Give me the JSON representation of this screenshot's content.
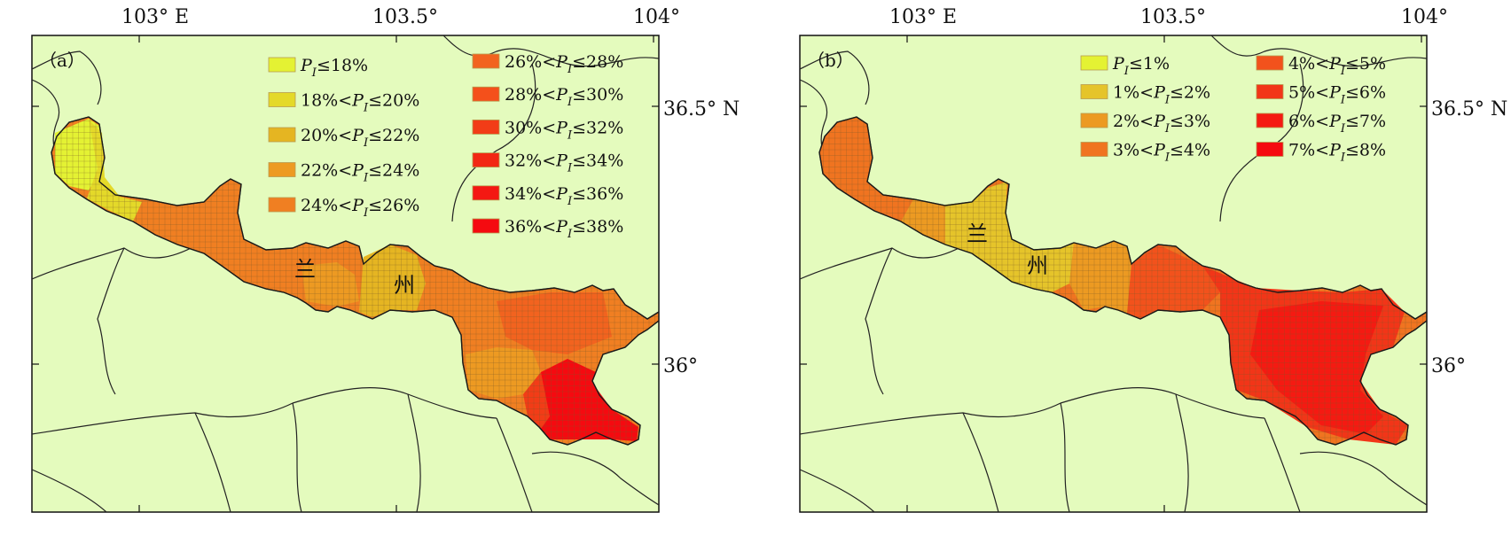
{
  "figure": {
    "panels": [
      {
        "id": "a",
        "label": "（a）",
        "x_ticks": [
          "103° E",
          "103.5°",
          "104°"
        ],
        "y_ticks": [
          "36.5° N",
          "36°"
        ],
        "city_chars": [
          "兰",
          "州"
        ],
        "legend": [
          {
            "pre": "",
            "post": "≤18%",
            "color": "#e4f233"
          },
          {
            "pre": "18%<",
            "post": "≤20%",
            "color": "#e4d929"
          },
          {
            "pre": "20%<",
            "post": "≤22%",
            "color": "#e5b522"
          },
          {
            "pre": "22%<",
            "post": "≤24%",
            "color": "#ed9a22"
          },
          {
            "pre": "24%<",
            "post": "≤26%",
            "color": "#f07f22"
          },
          {
            "pre": "26%<",
            "post": "≤28%",
            "color": "#f2631f"
          },
          {
            "pre": "28%<",
            "post": "≤30%",
            "color": "#f4501b"
          },
          {
            "pre": "30%<",
            "post": "≤32%",
            "color": "#f23c17"
          },
          {
            "pre": "32%<",
            "post": "≤34%",
            "color": "#f22814"
          },
          {
            "pre": "34%<",
            "post": "≤36%",
            "color": "#f41812"
          },
          {
            "pre": "36%<",
            "post": "≤38%",
            "color": "#f50a10"
          }
        ]
      },
      {
        "id": "b",
        "label": "（b）",
        "x_ticks": [
          "103° E",
          "103.5°",
          "104°"
        ],
        "y_ticks": [
          "36.5° N",
          "36°"
        ],
        "city_chars": [
          "兰",
          "州"
        ],
        "legend": [
          {
            "pre": "",
            "post": "≤1%",
            "color": "#e4f233"
          },
          {
            "pre": "1%<",
            "post": "≤2%",
            "color": "#e5c42a"
          },
          {
            "pre": "2%<",
            "post": "≤3%",
            "color": "#ec9a22"
          },
          {
            "pre": "3%<",
            "post": "≤4%",
            "color": "#f07420"
          },
          {
            "pre": "4%<",
            "post": "≤5%",
            "color": "#f2521c"
          },
          {
            "pre": "5%<",
            "post": "≤6%",
            "color": "#f23518"
          },
          {
            "pre": "6%<",
            "post": "≤7%",
            "color": "#f51a12"
          },
          {
            "pre": "7%<",
            "post": "≤8%",
            "color": "#f50a10"
          }
        ]
      }
    ],
    "var_main": "P",
    "var_sub": "I",
    "colors": {
      "background_land": "#e4fbbd",
      "grid_stroke": "#7a5a2a",
      "boundary": "#222222"
    }
  }
}
